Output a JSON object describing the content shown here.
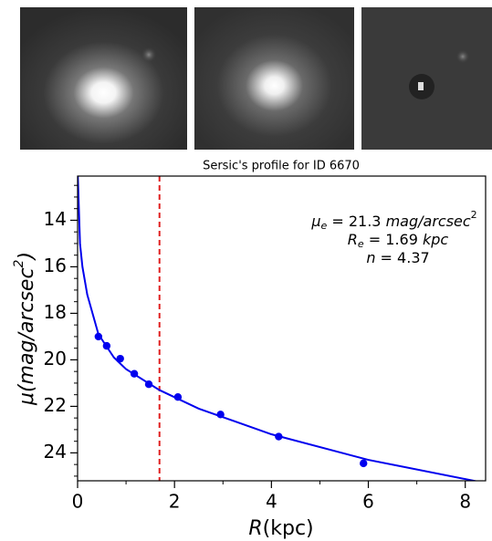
{
  "chart_data": {
    "type": "scatter",
    "title": "Sersic's profile for ID 6670",
    "xlabel": [
      "R",
      "(kpc)"
    ],
    "ylabel": [
      "μ(mag/arcsec",
      "2",
      ")"
    ],
    "annotations": [
      [
        "μ",
        "e",
        " = 21.3 ",
        "mag/arcsec",
        "2"
      ],
      [
        "R",
        "e",
        " = 1.69 ",
        "kpc"
      ],
      [
        "n",
        " = 4.37"
      ]
    ],
    "xlim": [
      0,
      8.42
    ],
    "ylim": [
      25.2,
      12.1
    ],
    "xticks": [
      0,
      2,
      4,
      6,
      8
    ],
    "xminor": [
      1,
      3,
      5,
      7
    ],
    "yticks": [
      14,
      16,
      18,
      20,
      22,
      24
    ],
    "yminor": [
      12.5,
      13,
      13.5,
      14.5,
      15,
      15.5,
      16.5,
      17,
      17.5,
      18.5,
      19,
      19.5,
      20.5,
      21,
      21.5,
      22.5,
      23,
      23.5,
      24.5,
      25
    ],
    "vline": {
      "x": 1.69,
      "color": "#e02020"
    },
    "series": [
      {
        "color": "#0000ee",
        "x": [
          0.43,
          0.6,
          0.88,
          1.17,
          1.47,
          2.07,
          2.95,
          4.15,
          5.9
        ],
        "values": [
          19.0,
          19.4,
          19.95,
          20.6,
          21.05,
          21.6,
          22.35,
          23.3,
          24.45
        ]
      }
    ],
    "curve": {
      "color": "#0000ee",
      "x": [
        0.005,
        0.05,
        0.1,
        0.2,
        0.43,
        0.75,
        1.0,
        1.69,
        2.5,
        4,
        6,
        8.42
      ],
      "values": [
        12.1,
        15.0,
        16.0,
        17.2,
        18.9,
        19.9,
        20.4,
        21.3,
        22.1,
        23.2,
        24.3,
        25.3
      ]
    }
  }
}
